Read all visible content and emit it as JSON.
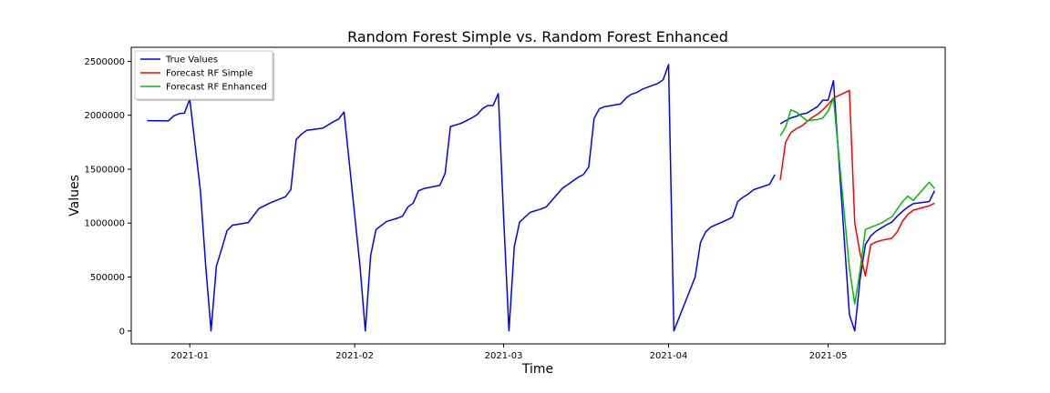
{
  "chart_data": {
    "type": "line",
    "title": "Random Forest Simple vs. Random Forest Enhanced",
    "xlabel": "Time",
    "ylabel": "Values",
    "x_axis": {
      "type": "date",
      "range": [
        "2020-12-21",
        "2021-05-23"
      ],
      "ticks": [
        "2021-01-01",
        "2021-02-01",
        "2021-03-01",
        "2021-04-01",
        "2021-05-01"
      ],
      "tick_labels": [
        "2021-01",
        "2021-02",
        "2021-03",
        "2021-04",
        "2021-05"
      ]
    },
    "y_axis": {
      "range": [
        -120000,
        2630000
      ],
      "ticks": [
        0,
        500000,
        1000000,
        1500000,
        2000000,
        2500000
      ],
      "tick_labels": [
        "0",
        "500000",
        "1000000",
        "1500000",
        "2000000",
        "2500000"
      ]
    },
    "grid": false,
    "legend_position": "top-left",
    "series": [
      {
        "name": "True Values",
        "color": "#0000ff",
        "segments": [
          [
            [
              "2020-12-24",
              1950000
            ],
            [
              "2020-12-28",
              1948000
            ],
            [
              "2020-12-29",
              1995000
            ],
            [
              "2020-12-30",
              2015000
            ],
            [
              "2020-12-31",
              2020000
            ],
            [
              "2021-01-01",
              2150000
            ],
            [
              "2021-01-03",
              1300000
            ],
            [
              "2021-01-04",
              600000
            ],
            [
              "2021-01-05",
              0
            ],
            [
              "2021-01-06",
              600000
            ],
            [
              "2021-01-07",
              760000
            ],
            [
              "2021-01-08",
              930000
            ],
            [
              "2021-01-09",
              980000
            ],
            [
              "2021-01-12",
              1005000
            ],
            [
              "2021-01-14",
              1135000
            ],
            [
              "2021-01-16",
              1185000
            ],
            [
              "2021-01-19",
              1245000
            ],
            [
              "2021-01-20",
              1310000
            ],
            [
              "2021-01-21",
              1775000
            ],
            [
              "2021-01-22",
              1825000
            ],
            [
              "2021-01-23",
              1860000
            ],
            [
              "2021-01-26",
              1880000
            ],
            [
              "2021-01-28",
              1940000
            ],
            [
              "2021-01-29",
              1965000
            ],
            [
              "2021-01-30",
              2030000
            ],
            [
              "2021-02-02",
              600000
            ],
            [
              "2021-02-03",
              0
            ],
            [
              "2021-02-04",
              700000
            ],
            [
              "2021-02-05",
              940000
            ],
            [
              "2021-02-07",
              1015000
            ],
            [
              "2021-02-09",
              1045000
            ],
            [
              "2021-02-10",
              1065000
            ],
            [
              "2021-02-11",
              1150000
            ],
            [
              "2021-02-12",
              1185000
            ],
            [
              "2021-02-13",
              1300000
            ],
            [
              "2021-02-14",
              1320000
            ],
            [
              "2021-02-17",
              1350000
            ],
            [
              "2021-02-18",
              1460000
            ],
            [
              "2021-02-19",
              1895000
            ],
            [
              "2021-02-21",
              1925000
            ],
            [
              "2021-02-23",
              1975000
            ],
            [
              "2021-02-24",
              2005000
            ],
            [
              "2021-02-25",
              2060000
            ],
            [
              "2021-02-26",
              2090000
            ],
            [
              "2021-02-27",
              2090000
            ],
            [
              "2021-02-28",
              2200000
            ],
            [
              "2021-03-01",
              1050000
            ],
            [
              "2021-03-02",
              0
            ],
            [
              "2021-03-03",
              780000
            ],
            [
              "2021-03-04",
              1010000
            ],
            [
              "2021-03-06",
              1100000
            ],
            [
              "2021-03-08",
              1130000
            ],
            [
              "2021-03-09",
              1150000
            ],
            [
              "2021-03-12",
              1320000
            ],
            [
              "2021-03-15",
              1425000
            ],
            [
              "2021-03-16",
              1450000
            ],
            [
              "2021-03-17",
              1520000
            ],
            [
              "2021-03-18",
              1970000
            ],
            [
              "2021-03-19",
              2060000
            ],
            [
              "2021-03-20",
              2080000
            ],
            [
              "2021-03-23",
              2105000
            ],
            [
              "2021-03-24",
              2160000
            ],
            [
              "2021-03-25",
              2195000
            ],
            [
              "2021-03-26",
              2210000
            ],
            [
              "2021-03-27",
              2240000
            ],
            [
              "2021-03-30",
              2295000
            ],
            [
              "2021-03-31",
              2330000
            ],
            [
              "2021-04-01",
              2470000
            ],
            [
              "2021-04-02",
              0
            ],
            [
              "2021-04-06",
              500000
            ],
            [
              "2021-04-07",
              820000
            ],
            [
              "2021-04-08",
              920000
            ],
            [
              "2021-04-09",
              965000
            ],
            [
              "2021-04-12",
              1030000
            ],
            [
              "2021-04-13",
              1055000
            ],
            [
              "2021-04-14",
              1200000
            ],
            [
              "2021-04-15",
              1240000
            ],
            [
              "2021-04-16",
              1270000
            ],
            [
              "2021-04-17",
              1310000
            ],
            [
              "2021-04-20",
              1360000
            ],
            [
              "2021-04-21",
              1450000
            ]
          ],
          [
            [
              "2021-04-22",
              1920000
            ],
            [
              "2021-04-23",
              1950000
            ],
            [
              "2021-04-24",
              1975000
            ],
            [
              "2021-04-25",
              1990000
            ],
            [
              "2021-04-26",
              2010000
            ],
            [
              "2021-04-27",
              2020000
            ],
            [
              "2021-04-28",
              2050000
            ],
            [
              "2021-04-29",
              2080000
            ],
            [
              "2021-04-30",
              2140000
            ],
            [
              "2021-05-01",
              2140000
            ],
            [
              "2021-05-02",
              2320000
            ],
            [
              "2021-05-05",
              150000
            ],
            [
              "2021-05-06",
              0
            ],
            [
              "2021-05-07",
              480000
            ],
            [
              "2021-05-08",
              800000
            ],
            [
              "2021-05-09",
              880000
            ],
            [
              "2021-05-10",
              925000
            ],
            [
              "2021-05-11",
              955000
            ],
            [
              "2021-05-12",
              985000
            ],
            [
              "2021-05-13",
              1010000
            ],
            [
              "2021-05-14",
              1065000
            ],
            [
              "2021-05-15",
              1110000
            ],
            [
              "2021-05-16",
              1150000
            ],
            [
              "2021-05-17",
              1180000
            ],
            [
              "2021-05-20",
              1200000
            ],
            [
              "2021-05-21",
              1300000
            ]
          ]
        ]
      },
      {
        "name": "Forecast RF Simple",
        "color": "#ff0000",
        "segments": [
          [
            [
              "2021-04-22",
              1400000
            ],
            [
              "2021-04-23",
              1750000
            ],
            [
              "2021-04-24",
              1840000
            ],
            [
              "2021-04-25",
              1875000
            ],
            [
              "2021-04-26",
              1900000
            ],
            [
              "2021-04-27",
              1940000
            ],
            [
              "2021-04-28",
              1980000
            ],
            [
              "2021-04-29",
              2010000
            ],
            [
              "2021-04-30",
              2050000
            ],
            [
              "2021-05-01",
              2100000
            ],
            [
              "2021-05-02",
              2160000
            ],
            [
              "2021-05-05",
              2230000
            ],
            [
              "2021-05-06",
              1000000
            ],
            [
              "2021-05-07",
              720000
            ],
            [
              "2021-05-08",
              510000
            ],
            [
              "2021-05-09",
              800000
            ],
            [
              "2021-05-10",
              825000
            ],
            [
              "2021-05-11",
              840000
            ],
            [
              "2021-05-13",
              860000
            ],
            [
              "2021-05-14",
              920000
            ],
            [
              "2021-05-15",
              1020000
            ],
            [
              "2021-05-16",
              1080000
            ],
            [
              "2021-05-17",
              1120000
            ],
            [
              "2021-05-20",
              1160000
            ],
            [
              "2021-05-21",
              1185000
            ]
          ]
        ]
      },
      {
        "name": "Forecast RF Enhanced",
        "color": "#00bb00",
        "segments": [
          [
            [
              "2021-04-22",
              1810000
            ],
            [
              "2021-04-23",
              1890000
            ],
            [
              "2021-04-24",
              2050000
            ],
            [
              "2021-04-25",
              2030000
            ],
            [
              "2021-04-26",
              1990000
            ],
            [
              "2021-04-27",
              1950000
            ],
            [
              "2021-04-29",
              1960000
            ],
            [
              "2021-04-30",
              1975000
            ],
            [
              "2021-05-01",
              2040000
            ],
            [
              "2021-05-02",
              2160000
            ],
            [
              "2021-05-05",
              580000
            ],
            [
              "2021-05-06",
              250000
            ],
            [
              "2021-05-07",
              560000
            ],
            [
              "2021-05-08",
              940000
            ],
            [
              "2021-05-09",
              960000
            ],
            [
              "2021-05-10",
              980000
            ],
            [
              "2021-05-11",
              1000000
            ],
            [
              "2021-05-12",
              1030000
            ],
            [
              "2021-05-13",
              1060000
            ],
            [
              "2021-05-15",
              1200000
            ],
            [
              "2021-05-16",
              1250000
            ],
            [
              "2021-05-17",
              1210000
            ],
            [
              "2021-05-20",
              1380000
            ],
            [
              "2021-05-21",
              1320000
            ]
          ]
        ]
      }
    ]
  }
}
